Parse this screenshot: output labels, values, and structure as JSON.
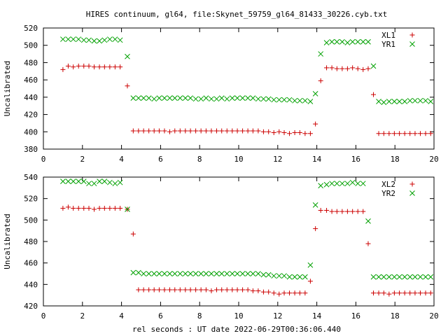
{
  "figure": {
    "title": "HIRES continuum, gl64, file:Skynet_59759_gl64_81433_30226.cyb.txt",
    "xlabel": "rel seconds : UT date 2022-06-29T00:36:06.440"
  },
  "chart_data": [
    {
      "type": "scatter",
      "ylabel": "Uncalibrated",
      "xlim": [
        0,
        20
      ],
      "ylim": [
        380,
        520
      ],
      "xticks": [
        0,
        2,
        4,
        6,
        8,
        10,
        12,
        14,
        16,
        18,
        20
      ],
      "yticks": [
        380,
        400,
        420,
        440,
        460,
        480,
        500,
        520
      ],
      "grid": false,
      "legend_position": "top-right",
      "series": [
        {
          "name": "XL1",
          "marker": "plus",
          "color": "#cc0000",
          "x": [
            1.0,
            1.27,
            1.53,
            1.8,
            2.07,
            2.33,
            2.6,
            2.87,
            3.13,
            3.4,
            3.67,
            3.93,
            4.3,
            4.6,
            4.87,
            5.13,
            5.4,
            5.67,
            5.93,
            6.2,
            6.47,
            6.73,
            7.0,
            7.27,
            7.53,
            7.8,
            8.07,
            8.33,
            8.6,
            8.87,
            9.13,
            9.4,
            9.67,
            9.93,
            10.2,
            10.47,
            10.73,
            11.0,
            11.27,
            11.53,
            11.8,
            12.07,
            12.33,
            12.6,
            12.87,
            13.13,
            13.4,
            13.67,
            13.93,
            14.2,
            14.5,
            14.77,
            15.03,
            15.3,
            15.57,
            15.83,
            16.1,
            16.37,
            16.63,
            16.9,
            17.17,
            17.43,
            17.7,
            17.97,
            18.23,
            18.5,
            18.77,
            19.03,
            19.3,
            19.57,
            19.83
          ],
          "y": [
            472,
            476,
            475,
            476,
            476,
            476,
            475,
            475,
            475,
            475,
            475,
            475,
            453,
            401,
            401,
            401,
            401,
            401,
            401,
            401,
            400,
            401,
            401,
            401,
            401,
            401,
            401,
            401,
            401,
            401,
            401,
            401,
            401,
            401,
            401,
            401,
            401,
            401,
            400,
            400,
            399,
            400,
            399,
            398,
            399,
            399,
            398,
            398,
            409,
            459,
            474,
            474,
            473,
            473,
            473,
            474,
            473,
            472,
            473,
            443,
            398,
            398,
            398,
            398,
            398,
            398,
            398,
            398,
            398,
            398,
            398
          ]
        },
        {
          "name": "YR1",
          "marker": "cross",
          "color": "#00a000",
          "x": [
            1.0,
            1.27,
            1.53,
            1.8,
            2.07,
            2.33,
            2.6,
            2.87,
            3.13,
            3.4,
            3.67,
            3.93,
            4.3,
            4.6,
            4.87,
            5.13,
            5.4,
            5.67,
            5.93,
            6.2,
            6.47,
            6.73,
            7.0,
            7.27,
            7.53,
            7.8,
            8.07,
            8.33,
            8.6,
            8.87,
            9.13,
            9.4,
            9.67,
            9.93,
            10.2,
            10.47,
            10.73,
            11.0,
            11.27,
            11.53,
            11.8,
            12.07,
            12.33,
            12.6,
            12.87,
            13.13,
            13.4,
            13.67,
            13.93,
            14.2,
            14.5,
            14.77,
            15.03,
            15.3,
            15.57,
            15.83,
            16.1,
            16.37,
            16.63,
            16.9,
            17.17,
            17.43,
            17.7,
            17.97,
            18.23,
            18.5,
            18.77,
            19.03,
            19.3,
            19.57,
            19.83
          ],
          "y": [
            507,
            507,
            507,
            507,
            506,
            506,
            505,
            505,
            506,
            507,
            507,
            506,
            487,
            439,
            439,
            439,
            439,
            438,
            439,
            439,
            439,
            439,
            439,
            439,
            439,
            438,
            438,
            439,
            438,
            438,
            439,
            438,
            439,
            439,
            439,
            439,
            439,
            438,
            438,
            438,
            437,
            437,
            437,
            437,
            436,
            436,
            436,
            435,
            444,
            490,
            503,
            504,
            504,
            504,
            503,
            504,
            504,
            504,
            504,
            476,
            435,
            434,
            435,
            435,
            435,
            435,
            436,
            436,
            436,
            436,
            435
          ]
        }
      ]
    },
    {
      "type": "scatter",
      "ylabel": "Uncalibrated",
      "xlim": [
        0,
        20
      ],
      "ylim": [
        420,
        540
      ],
      "xticks": [
        0,
        2,
        4,
        6,
        8,
        10,
        12,
        14,
        16,
        18,
        20
      ],
      "yticks": [
        420,
        440,
        460,
        480,
        500,
        520,
        540
      ],
      "grid": false,
      "legend_position": "top-right",
      "series": [
        {
          "name": "XL2",
          "marker": "plus",
          "color": "#cc0000",
          "x": [
            1.0,
            1.27,
            1.53,
            1.8,
            2.07,
            2.33,
            2.6,
            2.87,
            3.13,
            3.4,
            3.67,
            3.93,
            4.3,
            4.6,
            4.87,
            5.13,
            5.4,
            5.67,
            5.93,
            6.2,
            6.47,
            6.73,
            7.0,
            7.27,
            7.53,
            7.8,
            8.07,
            8.33,
            8.6,
            8.87,
            9.13,
            9.4,
            9.67,
            9.93,
            10.2,
            10.47,
            10.73,
            11.0,
            11.27,
            11.53,
            11.8,
            12.07,
            12.33,
            12.6,
            12.87,
            13.13,
            13.4,
            13.67,
            13.93,
            14.2,
            14.5,
            14.77,
            15.03,
            15.3,
            15.57,
            15.83,
            16.1,
            16.37,
            16.63,
            16.9,
            17.17,
            17.43,
            17.7,
            17.97,
            18.23,
            18.5,
            18.77,
            19.03,
            19.3,
            19.57,
            19.83
          ],
          "y": [
            511,
            512,
            511,
            511,
            511,
            511,
            510,
            511,
            511,
            511,
            511,
            511,
            510,
            487,
            435,
            435,
            435,
            435,
            435,
            435,
            435,
            435,
            435,
            435,
            435,
            435,
            435,
            435,
            434,
            435,
            435,
            435,
            435,
            435,
            435,
            435,
            434,
            434,
            433,
            433,
            432,
            431,
            432,
            432,
            432,
            432,
            432,
            443,
            492,
            509,
            509,
            508,
            508,
            508,
            508,
            508,
            508,
            508,
            478,
            432,
            432,
            432,
            431,
            432,
            432,
            432,
            432,
            432,
            432,
            432,
            432
          ]
        },
        {
          "name": "YR2",
          "marker": "cross",
          "color": "#00a000",
          "x": [
            1.0,
            1.27,
            1.53,
            1.8,
            2.07,
            2.33,
            2.6,
            2.87,
            3.13,
            3.4,
            3.67,
            3.93,
            4.3,
            4.6,
            4.87,
            5.13,
            5.4,
            5.67,
            5.93,
            6.2,
            6.47,
            6.73,
            7.0,
            7.27,
            7.53,
            7.8,
            8.07,
            8.33,
            8.6,
            8.87,
            9.13,
            9.4,
            9.67,
            9.93,
            10.2,
            10.47,
            10.73,
            11.0,
            11.27,
            11.53,
            11.8,
            12.07,
            12.33,
            12.6,
            12.87,
            13.13,
            13.4,
            13.67,
            13.93,
            14.2,
            14.5,
            14.77,
            15.03,
            15.3,
            15.57,
            15.83,
            16.1,
            16.37,
            16.63,
            16.9,
            17.17,
            17.43,
            17.7,
            17.97,
            18.23,
            18.5,
            18.77,
            19.03,
            19.3,
            19.57,
            19.83
          ],
          "y": [
            536,
            536,
            536,
            536,
            536,
            534,
            534,
            536,
            536,
            535,
            534,
            535,
            510,
            451,
            451,
            450,
            450,
            450,
            450,
            450,
            450,
            450,
            450,
            450,
            450,
            450,
            450,
            450,
            450,
            450,
            450,
            450,
            450,
            450,
            450,
            450,
            450,
            450,
            449,
            449,
            448,
            448,
            448,
            447,
            447,
            447,
            447,
            458,
            514,
            532,
            533,
            534,
            534,
            534,
            534,
            535,
            534,
            534,
            499,
            447,
            447,
            447,
            447,
            447,
            447,
            447,
            447,
            447,
            447,
            447,
            447
          ]
        }
      ]
    }
  ]
}
